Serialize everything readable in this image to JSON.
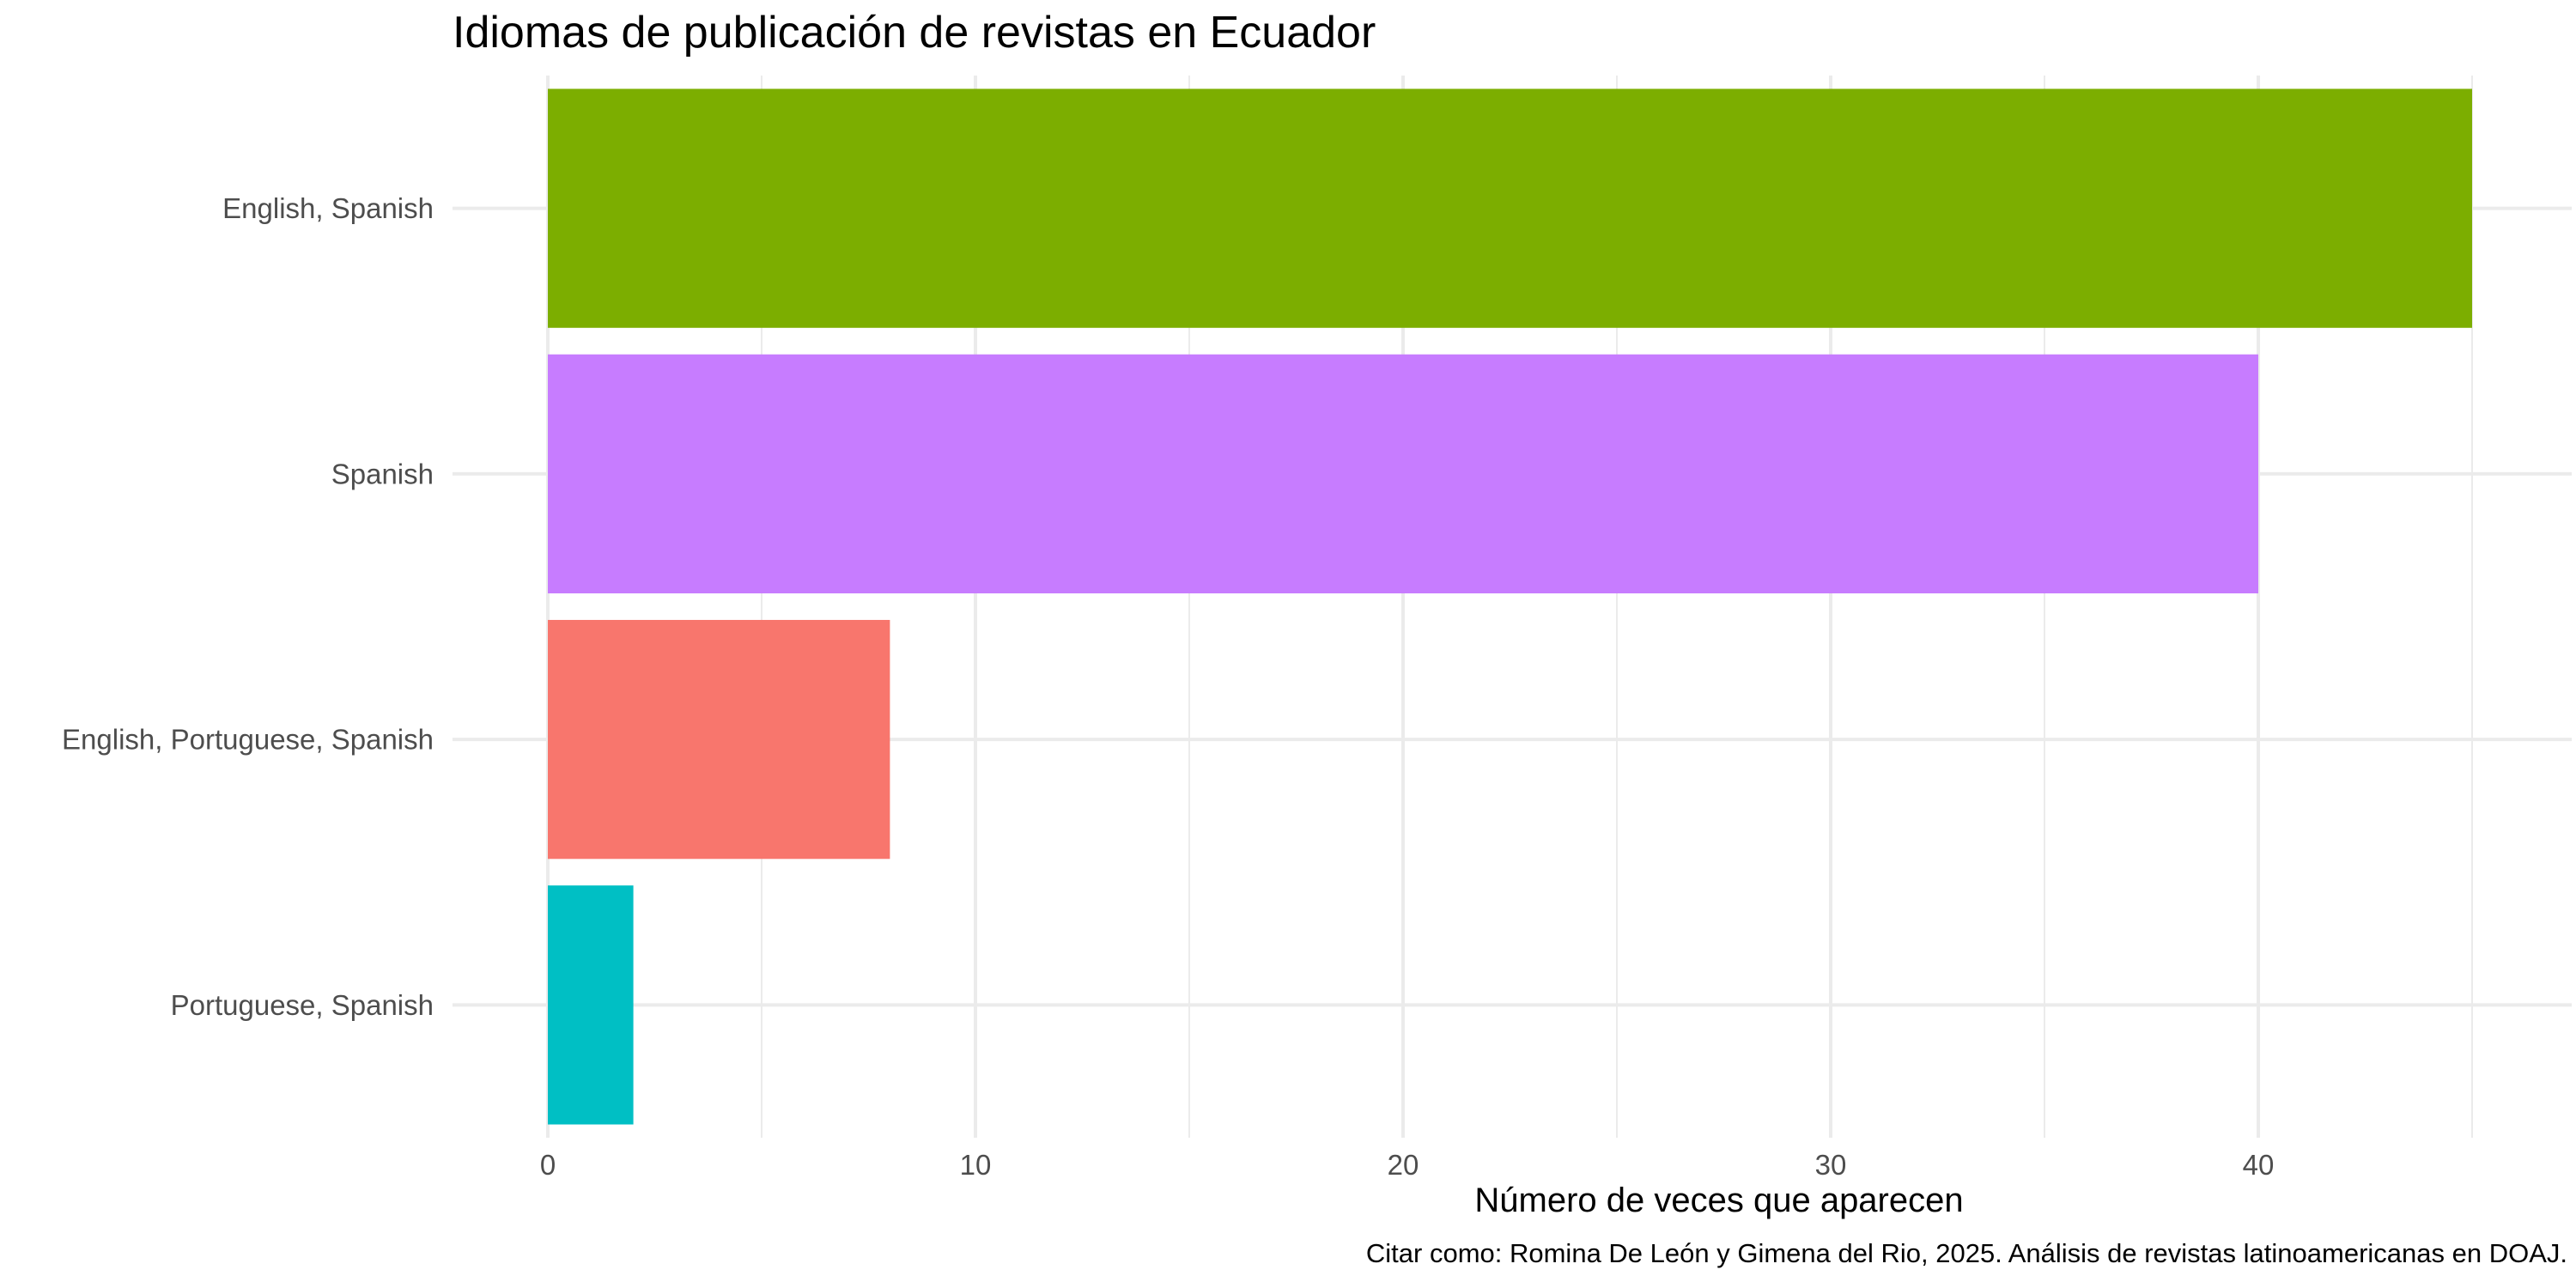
{
  "chart_data": {
    "type": "bar",
    "orientation": "horizontal",
    "title": "Idiomas de publicación de revistas en Ecuador",
    "xlabel": "Número de veces que aparecen",
    "ylabel": "",
    "caption": "Citar como: Romina De León y Gimena del Rio, 2025. Análisis de revistas latinoamericanas en DOAJ.",
    "categories": [
      "English, Spanish",
      "Spanish",
      "English, Portuguese, Spanish",
      "Portuguese, Spanish"
    ],
    "values": [
      45,
      40,
      8,
      2
    ],
    "colors": [
      "#7CAE00",
      "#C77CFF",
      "#F8766D",
      "#00BFC4"
    ],
    "xlim": [
      0,
      47.2
    ],
    "xticks": [
      0,
      10,
      20,
      30,
      40
    ],
    "grid": true,
    "legend": "none"
  }
}
